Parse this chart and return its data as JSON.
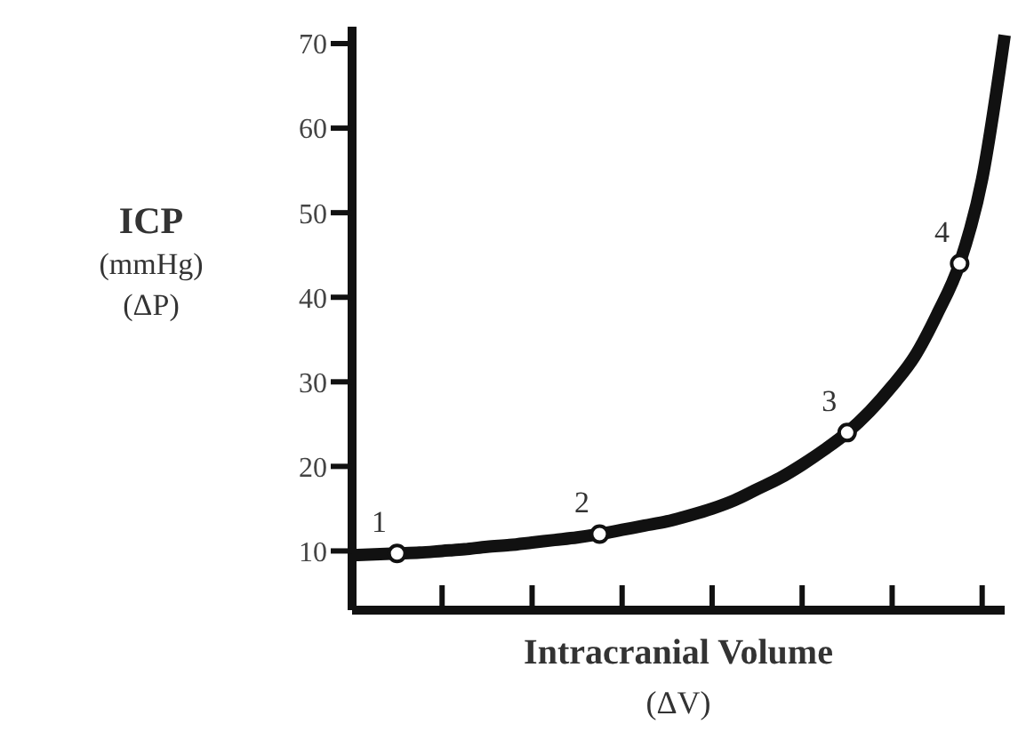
{
  "chart_data": {
    "type": "line",
    "xlabel": "Intracranial Volume\n(ΔV)",
    "ylabel": "ICP\n(mmHg)\n(ΔP)",
    "categories": [
      null,
      null,
      null,
      null,
      null,
      null,
      null,
      null,
      null,
      null,
      null,
      null,
      null,
      null,
      null,
      null,
      null,
      null,
      null,
      null,
      null,
      null,
      null,
      null,
      null,
      null,
      null,
      null,
      null,
      null
    ],
    "series": [
      {
        "color": "#111111",
        "values": [
          9.5,
          9.6,
          9.7,
          9.8,
          10,
          10.2,
          10.5,
          10.7,
          11,
          11.3,
          11.6,
          12,
          12.5,
          13,
          13.5,
          14.2,
          15,
          16,
          17.3,
          18.6,
          20.2,
          22,
          24,
          26.5,
          29.5,
          33,
          38,
          44,
          54,
          71
        ]
      },
      {
        "type": "scatter",
        "marker": "circle",
        "color": "#111111",
        "values": [
          null,
          null,
          9.7,
          null,
          null,
          null,
          null,
          null,
          null,
          null,
          null,
          12,
          null,
          null,
          null,
          null,
          null,
          null,
          null,
          null,
          null,
          null,
          24,
          null,
          null,
          null,
          null,
          44,
          null,
          null
        ]
      }
    ],
    "annotations": [
      "1",
      "2",
      "3",
      "4"
    ],
    "ylim": [
      3,
      72
    ],
    "yticks": [
      10,
      20,
      30,
      40,
      50,
      60,
      70
    ],
    "line_style": "solid",
    "tick_labels": "y"
  }
}
